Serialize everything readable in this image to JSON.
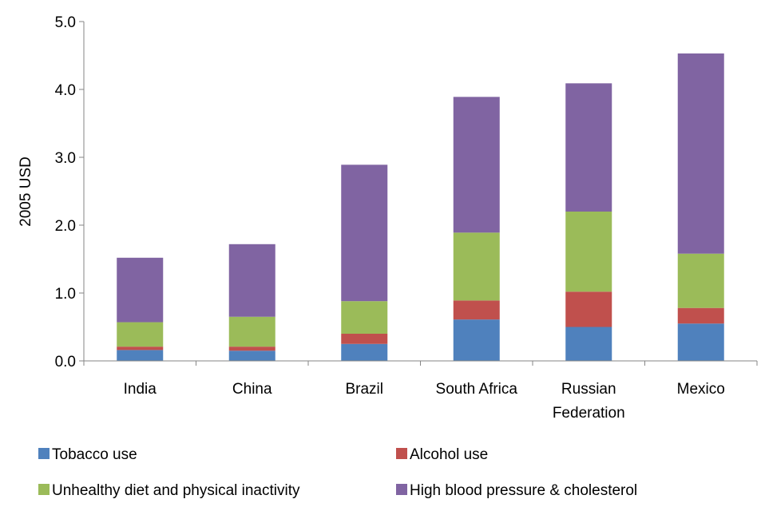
{
  "chart_data": {
    "type": "bar",
    "stacked": true,
    "categories": [
      "India",
      "China",
      "Brazil",
      "South Africa",
      "Russian Federation",
      "Mexico"
    ],
    "category_lines": [
      [
        "India"
      ],
      [
        "China"
      ],
      [
        "Brazil"
      ],
      [
        "South Africa"
      ],
      [
        "Russian",
        "Federation"
      ],
      [
        "Mexico"
      ]
    ],
    "series": [
      {
        "name": "Tobacco use",
        "color": "#4f81bd",
        "values": [
          0.16,
          0.15,
          0.25,
          0.61,
          0.5,
          0.55
        ]
      },
      {
        "name": "Alcohol use",
        "color": "#c0504d",
        "values": [
          0.05,
          0.06,
          0.15,
          0.28,
          0.52,
          0.23
        ]
      },
      {
        "name": "Unhealthy diet and physical inactivity",
        "color": "#9bbb59",
        "values": [
          0.36,
          0.44,
          0.48,
          1.0,
          1.18,
          0.8
        ]
      },
      {
        "name": "High blood pressure & cholesterol",
        "color": "#8064a2",
        "values": [
          0.95,
          1.07,
          2.01,
          2.0,
          1.89,
          2.95
        ]
      }
    ],
    "ylabel": "2005 USD",
    "ylim": [
      0,
      5
    ],
    "yticks": [
      0,
      1,
      2,
      3,
      4,
      5
    ],
    "ytick_labels": [
      "0.0",
      "1.0",
      "2.0",
      "3.0",
      "4.0",
      "5.0"
    ],
    "grid": false,
    "legend_position": "bottom"
  }
}
